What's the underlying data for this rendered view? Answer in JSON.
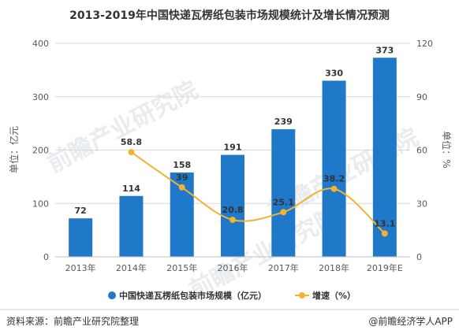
{
  "chart_data": {
    "type": "bar",
    "title": "2013-2019年中国快递瓦楞纸包装市场规模统计及增长情况预测",
    "categories": [
      "2013年",
      "2014年",
      "2015年",
      "2016年",
      "2017年",
      "2018年",
      "2019年E"
    ],
    "series": [
      {
        "name": "中国快递瓦楞纸包装市场规模（亿元）",
        "type": "bar",
        "axis": "left",
        "color": "#1f78c8",
        "values": [
          72,
          114,
          158,
          191,
          239,
          330,
          373
        ],
        "labels": [
          "72",
          "114",
          "158",
          "191",
          "239",
          "330",
          "373"
        ]
      },
      {
        "name": "增速（%）",
        "type": "line",
        "axis": "right",
        "color": "#f2b233",
        "values": [
          null,
          58.8,
          39,
          20.8,
          25.1,
          38.2,
          13.1
        ],
        "labels": [
          "",
          "58.8",
          "39",
          "20.8",
          "25.1",
          "38.2",
          "13.1"
        ]
      }
    ],
    "ylabel_left": "单位：亿元",
    "ylabel_right": "单位：%",
    "ylim_left": [
      0,
      400
    ],
    "yticks_left": [
      "0",
      "100",
      "200",
      "300",
      "400"
    ],
    "ylim_right": [
      0,
      120
    ],
    "yticks_right": [
      "0",
      "30",
      "60",
      "90",
      "120"
    ],
    "grid": true,
    "legend_position": "bottom"
  },
  "footer": {
    "source": "资料来源：前瞻产业研究院整理",
    "brand": "@前瞻经济学人APP"
  },
  "watermark": {
    "text": "前瞻产业研究院"
  }
}
